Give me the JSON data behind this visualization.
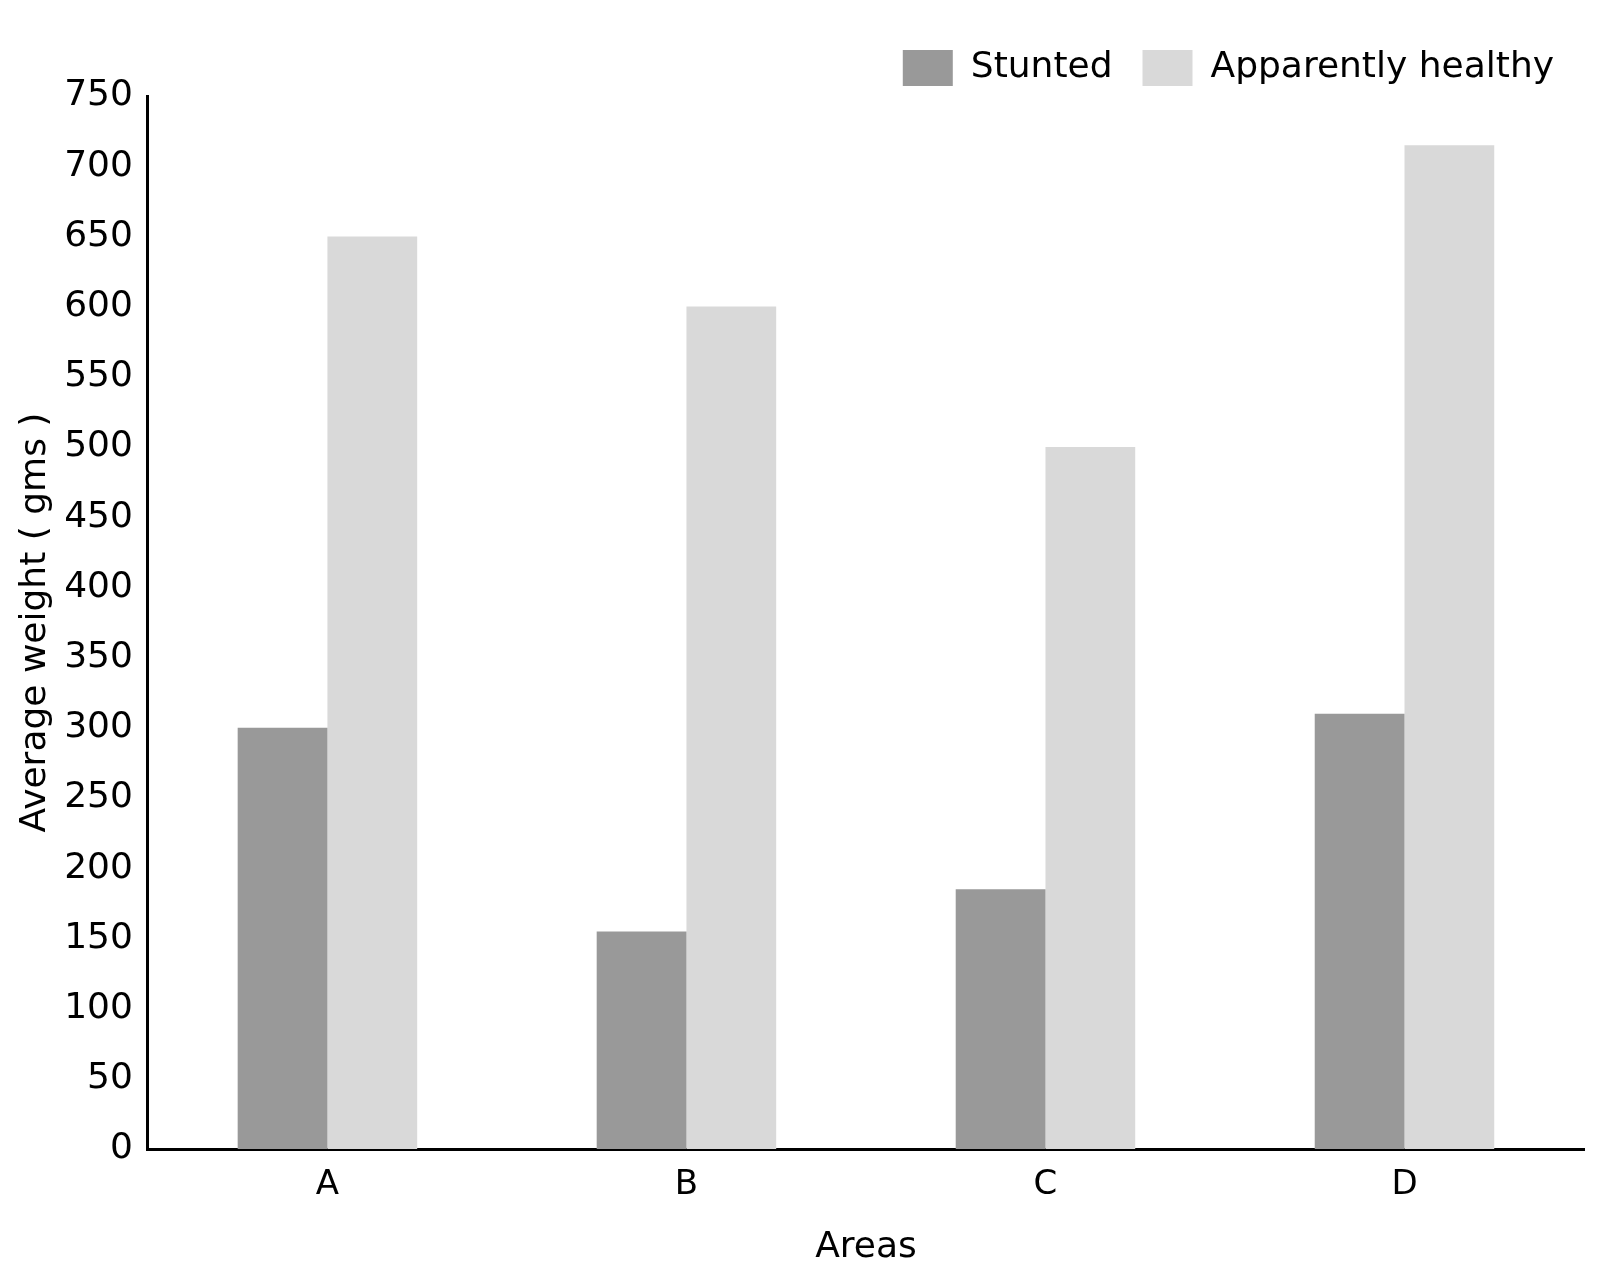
{
  "chart_data": {
    "type": "bar",
    "xlabel": "Areas",
    "ylabel": "Average weight ( gms )",
    "categories": [
      "A",
      "B",
      "C",
      "D"
    ],
    "series": [
      {
        "name": "Stunted",
        "color": "#999999",
        "values": [
          300,
          155,
          185,
          310
        ]
      },
      {
        "name": "Apparently healthy",
        "color": "#d9d9d9",
        "values": [
          650,
          600,
          500,
          715
        ]
      }
    ],
    "ylim": [
      0,
      750
    ],
    "yticks": [
      0,
      50,
      100,
      150,
      200,
      250,
      300,
      350,
      400,
      450,
      500,
      550,
      600,
      650,
      700,
      750
    ],
    "grid": false,
    "legend": "top right"
  }
}
